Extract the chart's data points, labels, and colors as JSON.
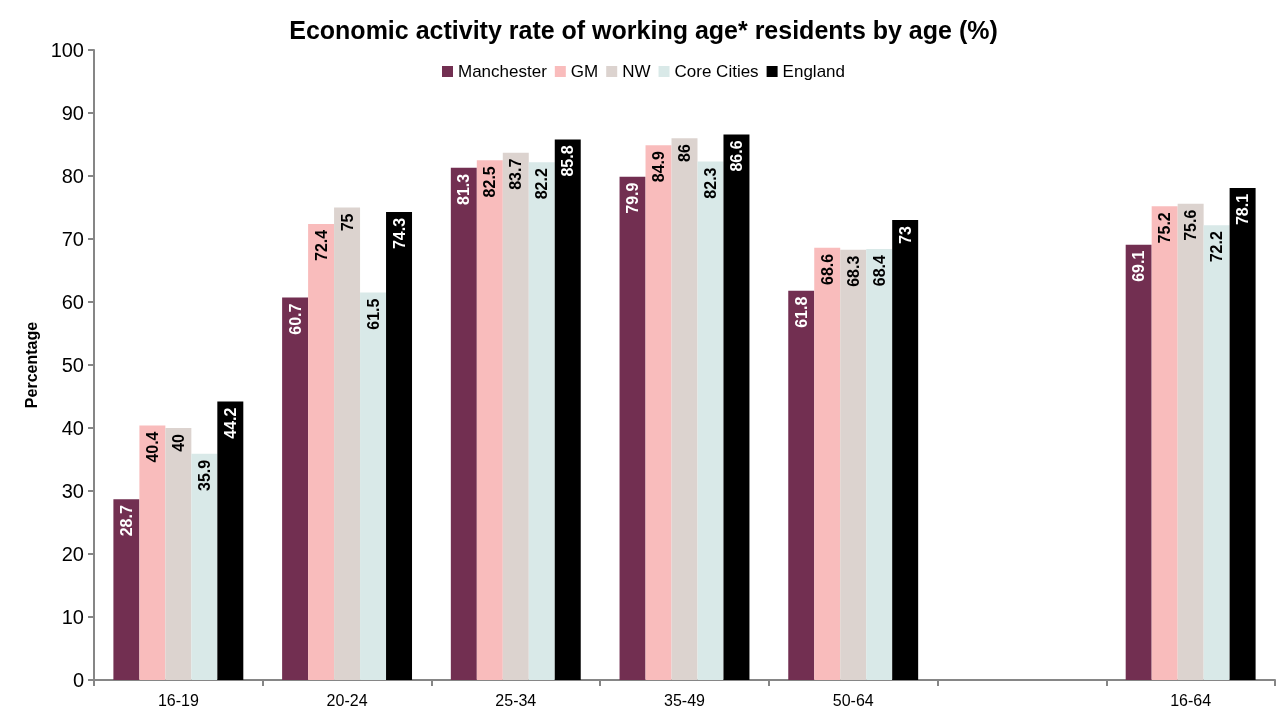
{
  "chart_data": {
    "type": "bar",
    "title": "Economic activity rate of working age* residents by age (%)",
    "ylabel": "Percentage",
    "categories": [
      "16-19",
      "20-24",
      "25-34",
      "35-49",
      "50-64",
      null,
      "16-64"
    ],
    "series": [
      {
        "name": "Manchester",
        "color": "#722f51",
        "values": [
          28.7,
          60.7,
          81.3,
          79.9,
          61.8,
          null,
          69.1
        ]
      },
      {
        "name": "GM",
        "color": "#f9bcbc",
        "values": [
          40.4,
          72.4,
          82.5,
          84.9,
          68.6,
          null,
          75.2
        ]
      },
      {
        "name": "NW",
        "color": "#dcd3cf",
        "values": [
          40,
          75,
          83.7,
          86,
          68.3,
          null,
          75.6
        ]
      },
      {
        "name": "Core Cities",
        "color": "#d9e9e8",
        "values": [
          35.9,
          61.5,
          82.2,
          82.3,
          68.4,
          null,
          72.2
        ]
      },
      {
        "name": "England",
        "color": "#000000",
        "values": [
          44.2,
          74.3,
          85.8,
          86.6,
          73,
          null,
          78.1
        ]
      }
    ],
    "ylim": [
      0,
      100
    ],
    "yticks": [
      0,
      10,
      20,
      30,
      40,
      50,
      60,
      70,
      80,
      90,
      100
    ],
    "grid": false,
    "legend": "top",
    "data_labels": true
  }
}
